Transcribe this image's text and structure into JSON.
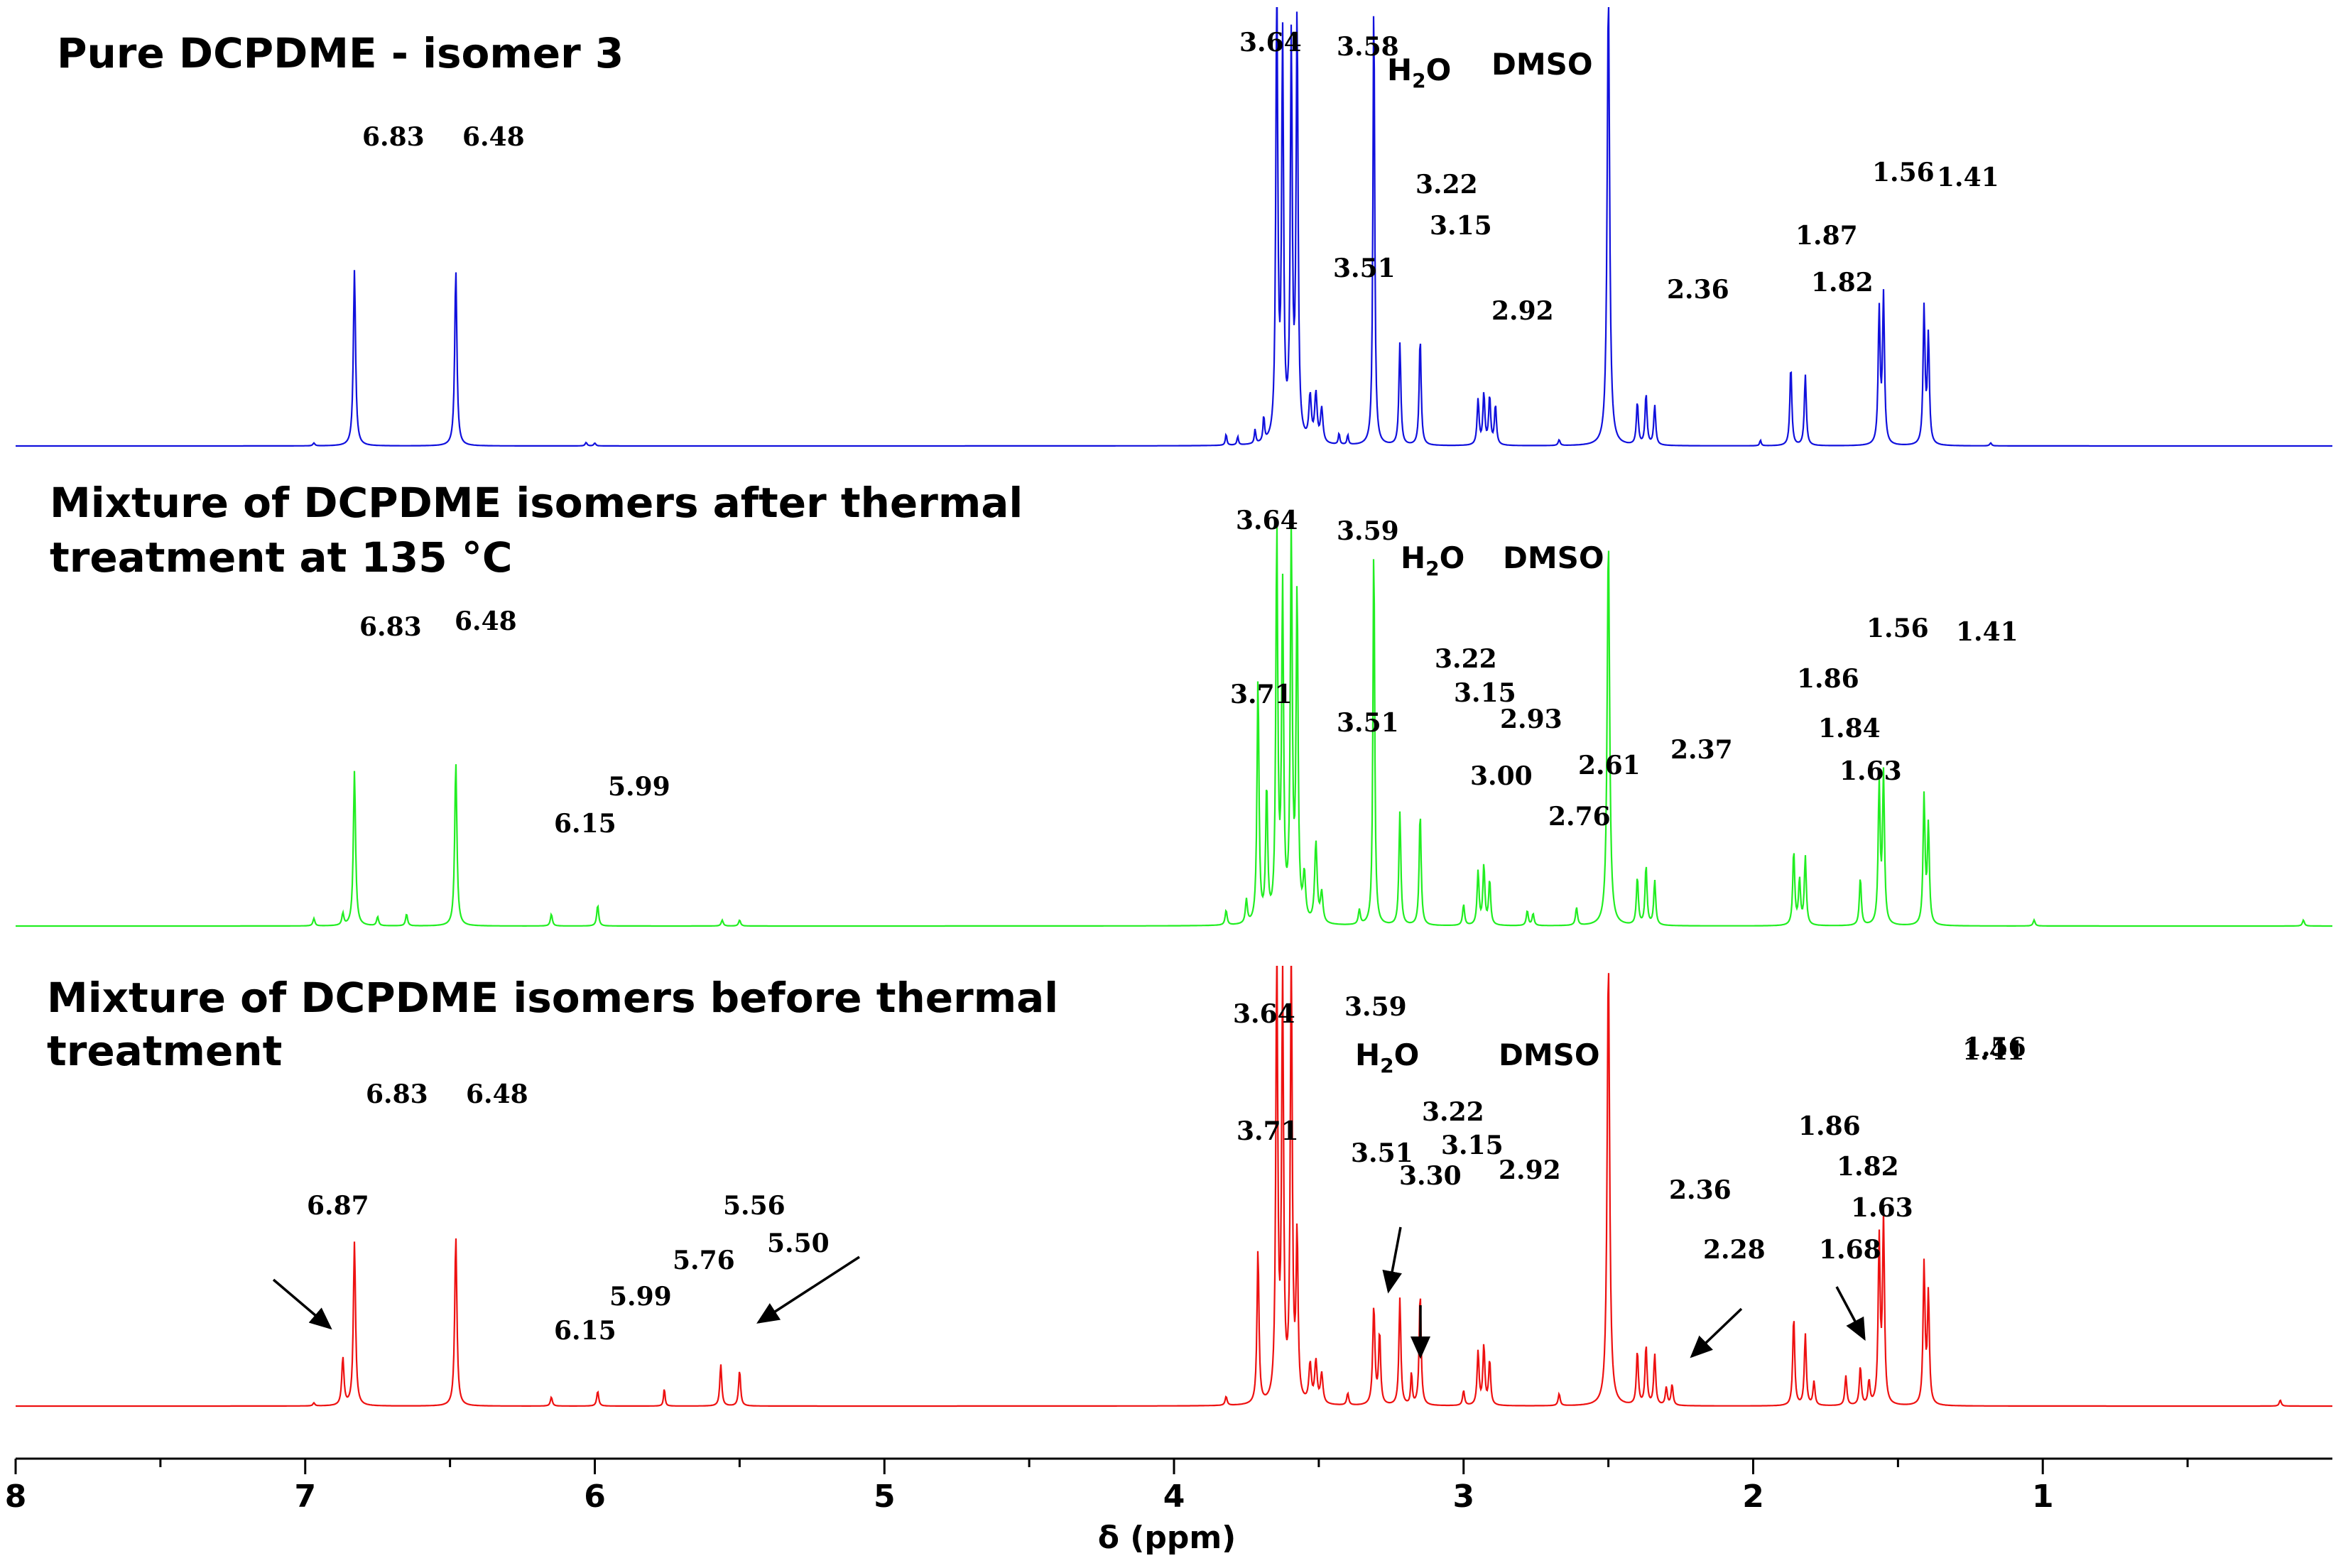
{
  "chart_data": {
    "type": "line",
    "xlabel": "δ (ppm)",
    "xlim": [
      8.0,
      0.0
    ],
    "x_axis_reversed": true,
    "xticks": [
      8,
      7,
      6,
      5,
      4,
      3,
      2,
      1
    ],
    "legend": "none",
    "grid": false,
    "spectra": [
      {
        "name": "pure",
        "title_lines": [
          "Pure DCPDME - isomer 3"
        ],
        "color": "#1111dd",
        "solvent_labels": {
          "water": "H",
          "water_sub": "2",
          "water_tail": "O",
          "dmso": "DMSO"
        },
        "peaks": [
          {
            "ppm": 6.97,
            "h": 0.01,
            "w": 0.004
          },
          {
            "ppm": 6.83,
            "h": 0.62,
            "w": 0.0045
          },
          {
            "ppm": 6.48,
            "h": 0.62,
            "w": 0.0045
          },
          {
            "ppm": 6.03,
            "h": 0.012,
            "w": 0.004
          },
          {
            "ppm": 6.0,
            "h": 0.01,
            "w": 0.004
          },
          {
            "ppm": 3.82,
            "h": 0.04,
            "w": 0.003
          },
          {
            "ppm": 3.78,
            "h": 0.03,
            "w": 0.003
          },
          {
            "ppm": 3.72,
            "h": 0.05,
            "w": 0.003
          },
          {
            "ppm": 3.69,
            "h": 0.09,
            "w": 0.003
          },
          {
            "ppm": 3.645,
            "h": 1.6,
            "w": 0.004
          },
          {
            "ppm": 3.625,
            "h": 1.4,
            "w": 0.004
          },
          {
            "ppm": 3.595,
            "h": 1.4,
            "w": 0.004
          },
          {
            "ppm": 3.575,
            "h": 1.5,
            "w": 0.004
          },
          {
            "ppm": 3.53,
            "h": 0.16,
            "w": 0.005
          },
          {
            "ppm": 3.51,
            "h": 0.17,
            "w": 0.005
          },
          {
            "ppm": 3.49,
            "h": 0.12,
            "w": 0.005
          },
          {
            "ppm": 3.43,
            "h": 0.04,
            "w": 0.003
          },
          {
            "ppm": 3.4,
            "h": 0.035,
            "w": 0.003
          },
          {
            "ppm": 3.31,
            "h": 1.6,
            "w": 0.0035
          },
          {
            "ppm": 3.22,
            "h": 0.36,
            "w": 0.004
          },
          {
            "ppm": 3.15,
            "h": 0.38,
            "w": 0.004
          },
          {
            "ppm": 2.95,
            "h": 0.16,
            "w": 0.004
          },
          {
            "ppm": 2.93,
            "h": 0.18,
            "w": 0.004
          },
          {
            "ppm": 2.91,
            "h": 0.17,
            "w": 0.004
          },
          {
            "ppm": 2.89,
            "h": 0.14,
            "w": 0.004
          },
          {
            "ppm": 2.67,
            "h": 0.02,
            "w": 0.004
          },
          {
            "ppm": 2.5,
            "h": 1.6,
            "w": 0.005
          },
          {
            "ppm": 2.4,
            "h": 0.15,
            "w": 0.004
          },
          {
            "ppm": 2.37,
            "h": 0.18,
            "w": 0.004
          },
          {
            "ppm": 2.34,
            "h": 0.14,
            "w": 0.004
          },
          {
            "ppm": 1.975,
            "h": 0.02,
            "w": 0.003
          },
          {
            "ppm": 1.87,
            "h": 0.28,
            "w": 0.004
          },
          {
            "ppm": 1.82,
            "h": 0.25,
            "w": 0.004
          },
          {
            "ppm": 1.565,
            "h": 0.47,
            "w": 0.004
          },
          {
            "ppm": 1.55,
            "h": 0.52,
            "w": 0.004
          },
          {
            "ppm": 1.41,
            "h": 0.48,
            "w": 0.004
          },
          {
            "ppm": 1.395,
            "h": 0.38,
            "w": 0.004
          },
          {
            "ppm": 1.18,
            "h": 0.01,
            "w": 0.004
          }
        ],
        "peak_labels": [
          "6.83",
          "6.48",
          "3.64",
          "3.58",
          "3.51",
          "3.22",
          "3.15",
          "2.92",
          "2.36",
          "1.87",
          "1.82",
          "1.56",
          "1.41"
        ]
      },
      {
        "name": "after",
        "title_lines": [
          "Mixture of DCPDME isomers after thermal",
          "treatment at 135 °C"
        ],
        "color": "#22ee22",
        "solvent_labels": {
          "water": "H",
          "water_sub": "2",
          "water_tail": "O",
          "dmso": "DMSO"
        },
        "peaks": [
          {
            "ppm": 6.97,
            "h": 0.025,
            "w": 0.004
          },
          {
            "ppm": 6.87,
            "h": 0.04,
            "w": 0.004
          },
          {
            "ppm": 6.83,
            "h": 0.52,
            "w": 0.0045
          },
          {
            "ppm": 6.75,
            "h": 0.03,
            "w": 0.004
          },
          {
            "ppm": 6.65,
            "h": 0.04,
            "w": 0.004
          },
          {
            "ppm": 6.48,
            "h": 0.55,
            "w": 0.0045
          },
          {
            "ppm": 6.15,
            "h": 0.04,
            "w": 0.004
          },
          {
            "ppm": 5.99,
            "h": 0.07,
            "w": 0.004
          },
          {
            "ppm": 5.56,
            "h": 0.02,
            "w": 0.004
          },
          {
            "ppm": 5.5,
            "h": 0.02,
            "w": 0.004
          },
          {
            "ppm": 3.82,
            "h": 0.05,
            "w": 0.004
          },
          {
            "ppm": 3.75,
            "h": 0.08,
            "w": 0.004
          },
          {
            "ppm": 3.71,
            "h": 0.82,
            "w": 0.004
          },
          {
            "ppm": 3.68,
            "h": 0.45,
            "w": 0.004
          },
          {
            "ppm": 3.645,
            "h": 1.3,
            "w": 0.004
          },
          {
            "ppm": 3.625,
            "h": 1.1,
            "w": 0.004
          },
          {
            "ppm": 3.595,
            "h": 1.3,
            "w": 0.004
          },
          {
            "ppm": 3.575,
            "h": 1.1,
            "w": 0.004
          },
          {
            "ppm": 3.55,
            "h": 0.15,
            "w": 0.005
          },
          {
            "ppm": 3.51,
            "h": 0.27,
            "w": 0.005
          },
          {
            "ppm": 3.49,
            "h": 0.1,
            "w": 0.005
          },
          {
            "ppm": 3.36,
            "h": 0.05,
            "w": 0.004
          },
          {
            "ppm": 3.31,
            "h": 1.3,
            "w": 0.0035
          },
          {
            "ppm": 3.22,
            "h": 0.38,
            "w": 0.004
          },
          {
            "ppm": 3.15,
            "h": 0.38,
            "w": 0.004
          },
          {
            "ppm": 3.0,
            "h": 0.07,
            "w": 0.004
          },
          {
            "ppm": 2.95,
            "h": 0.18,
            "w": 0.004
          },
          {
            "ppm": 2.93,
            "h": 0.2,
            "w": 0.004
          },
          {
            "ppm": 2.91,
            "h": 0.15,
            "w": 0.004
          },
          {
            "ppm": 2.78,
            "h": 0.05,
            "w": 0.004
          },
          {
            "ppm": 2.76,
            "h": 0.04,
            "w": 0.004
          },
          {
            "ppm": 2.61,
            "h": 0.06,
            "w": 0.004
          },
          {
            "ppm": 2.5,
            "h": 1.3,
            "w": 0.005
          },
          {
            "ppm": 2.4,
            "h": 0.16,
            "w": 0.004
          },
          {
            "ppm": 2.37,
            "h": 0.2,
            "w": 0.004
          },
          {
            "ppm": 2.34,
            "h": 0.15,
            "w": 0.004
          },
          {
            "ppm": 1.86,
            "h": 0.25,
            "w": 0.004
          },
          {
            "ppm": 1.84,
            "h": 0.15,
            "w": 0.004
          },
          {
            "ppm": 1.82,
            "h": 0.23,
            "w": 0.004
          },
          {
            "ppm": 1.63,
            "h": 0.16,
            "w": 0.004
          },
          {
            "ppm": 1.565,
            "h": 0.47,
            "w": 0.004
          },
          {
            "ppm": 1.55,
            "h": 0.5,
            "w": 0.004
          },
          {
            "ppm": 1.41,
            "h": 0.43,
            "w": 0.004
          },
          {
            "ppm": 1.395,
            "h": 0.33,
            "w": 0.004
          },
          {
            "ppm": 1.03,
            "h": 0.02,
            "w": 0.004
          },
          {
            "ppm": 0.1,
            "h": 0.02,
            "w": 0.004
          }
        ],
        "peak_labels": [
          "6.83",
          "6.48",
          "6.15",
          "5.99",
          "3.64",
          "3.59",
          "3.71",
          "3.51",
          "3.22",
          "3.15",
          "2.93",
          "3.00",
          "2.76",
          "2.61",
          "2.37",
          "1.86",
          "1.84",
          "1.63",
          "1.56",
          "1.41"
        ]
      },
      {
        "name": "before",
        "title_lines": [
          "Mixture of DCPDME isomers before thermal",
          "treatment"
        ],
        "color": "#ee1111",
        "solvent_labels": {
          "water": "H",
          "water_sub": "2",
          "water_tail": "O",
          "dmso": "DMSO"
        },
        "peaks": [
          {
            "ppm": 6.97,
            "h": 0.01,
            "w": 0.004
          },
          {
            "ppm": 6.87,
            "h": 0.16,
            "w": 0.0045
          },
          {
            "ppm": 6.83,
            "h": 0.55,
            "w": 0.0045
          },
          {
            "ppm": 6.48,
            "h": 0.57,
            "w": 0.0045
          },
          {
            "ppm": 6.15,
            "h": 0.03,
            "w": 0.004
          },
          {
            "ppm": 5.99,
            "h": 0.05,
            "w": 0.004
          },
          {
            "ppm": 5.76,
            "h": 0.06,
            "w": 0.003
          },
          {
            "ppm": 5.565,
            "h": 0.14,
            "w": 0.004
          },
          {
            "ppm": 5.5,
            "h": 0.12,
            "w": 0.004
          },
          {
            "ppm": 3.82,
            "h": 0.03,
            "w": 0.004
          },
          {
            "ppm": 3.71,
            "h": 0.52,
            "w": 0.004
          },
          {
            "ppm": 3.645,
            "h": 1.5,
            "w": 0.004
          },
          {
            "ppm": 3.625,
            "h": 1.4,
            "w": 0.004
          },
          {
            "ppm": 3.595,
            "h": 1.5,
            "w": 0.004
          },
          {
            "ppm": 3.575,
            "h": 0.55,
            "w": 0.004
          },
          {
            "ppm": 3.53,
            "h": 0.13,
            "w": 0.005
          },
          {
            "ppm": 3.51,
            "h": 0.14,
            "w": 0.005
          },
          {
            "ppm": 3.49,
            "h": 0.1,
            "w": 0.005
          },
          {
            "ppm": 3.4,
            "h": 0.04,
            "w": 0.004
          },
          {
            "ppm": 3.31,
            "h": 0.33,
            "w": 0.0045
          },
          {
            "ppm": 3.29,
            "h": 0.24,
            "w": 0.004
          },
          {
            "ppm": 3.22,
            "h": 0.36,
            "w": 0.004
          },
          {
            "ppm": 3.18,
            "h": 0.11,
            "w": 0.003
          },
          {
            "ppm": 3.15,
            "h": 0.38,
            "w": 0.004
          },
          {
            "ppm": 3.0,
            "h": 0.05,
            "w": 0.004
          },
          {
            "ppm": 2.95,
            "h": 0.18,
            "w": 0.004
          },
          {
            "ppm": 2.93,
            "h": 0.2,
            "w": 0.004
          },
          {
            "ppm": 2.91,
            "h": 0.15,
            "w": 0.004
          },
          {
            "ppm": 2.67,
            "h": 0.04,
            "w": 0.004
          },
          {
            "ppm": 2.5,
            "h": 1.5,
            "w": 0.005
          },
          {
            "ppm": 2.4,
            "h": 0.18,
            "w": 0.004
          },
          {
            "ppm": 2.37,
            "h": 0.2,
            "w": 0.004
          },
          {
            "ppm": 2.34,
            "h": 0.17,
            "w": 0.004
          },
          {
            "ppm": 2.3,
            "h": 0.06,
            "w": 0.004
          },
          {
            "ppm": 2.28,
            "h": 0.07,
            "w": 0.004
          },
          {
            "ppm": 1.86,
            "h": 0.3,
            "w": 0.004
          },
          {
            "ppm": 1.82,
            "h": 0.24,
            "w": 0.004
          },
          {
            "ppm": 1.79,
            "h": 0.08,
            "w": 0.004
          },
          {
            "ppm": 1.68,
            "h": 0.1,
            "w": 0.004
          },
          {
            "ppm": 1.63,
            "h": 0.13,
            "w": 0.004
          },
          {
            "ppm": 1.6,
            "h": 0.08,
            "w": 0.004
          },
          {
            "ppm": 1.565,
            "h": 0.55,
            "w": 0.004
          },
          {
            "ppm": 1.55,
            "h": 0.62,
            "w": 0.004
          },
          {
            "ppm": 1.41,
            "h": 0.47,
            "w": 0.004
          },
          {
            "ppm": 1.395,
            "h": 0.37,
            "w": 0.004
          },
          {
            "ppm": 0.18,
            "h": 0.02,
            "w": 0.004
          }
        ],
        "peak_labels": [
          "6.87",
          "6.83",
          "6.48",
          "6.15",
          "5.99",
          "5.76",
          "5.56",
          "5.50",
          "3.64",
          "3.71",
          "3.59",
          "3.51",
          "3.30",
          "3.22",
          "3.15",
          "2.92",
          "2.36",
          "2.28",
          "1.86",
          "1.82",
          "1.63",
          "1.68",
          "1.56",
          "1.41"
        ]
      }
    ]
  }
}
